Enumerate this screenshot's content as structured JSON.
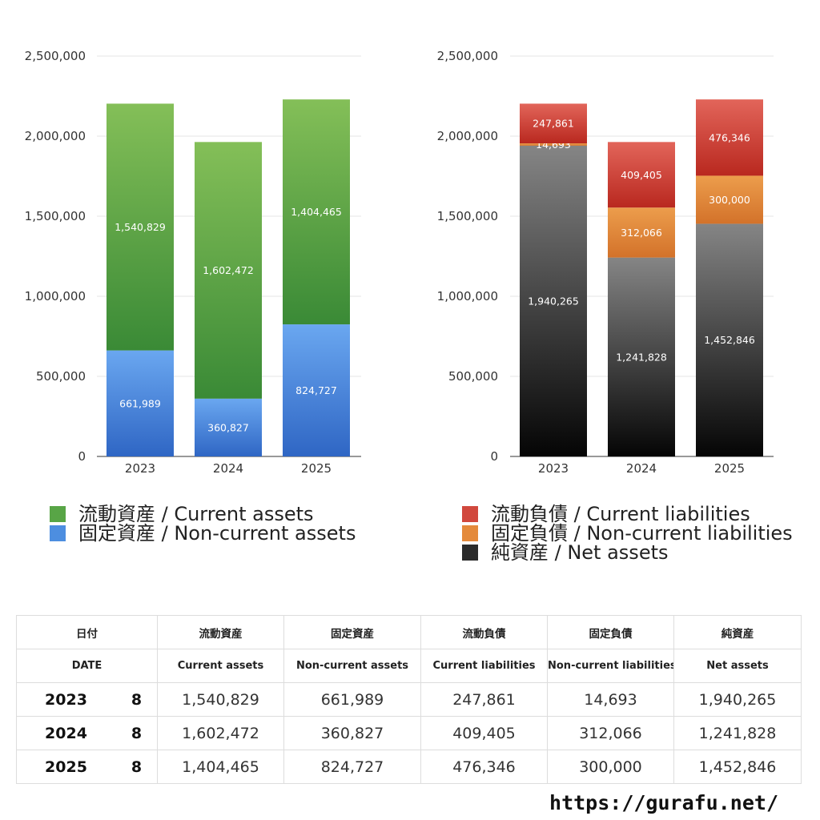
{
  "chart_data": [
    {
      "type": "bar",
      "stacked": true,
      "categories": [
        "2023",
        "2024",
        "2025"
      ],
      "series": [
        {
          "name": "固定資産 / Non-current assets",
          "values": [
            661989,
            360827,
            824727
          ],
          "color_top": "#6aa7f0",
          "color_bottom": "#2f66c4"
        },
        {
          "name": "流動資産 / Current assets",
          "values": [
            1540829,
            1602472,
            1404465
          ],
          "color_top": "#84bf58",
          "color_bottom": "#3a8a36"
        }
      ],
      "ylim": [
        0,
        2500000
      ],
      "yticks": [
        "0",
        "500,000",
        "1,000,000",
        "1,500,000",
        "2,000,000",
        "2,500,000"
      ],
      "xlabel": "",
      "ylabel": "",
      "grid": true,
      "legend_position": "bottom"
    },
    {
      "type": "bar",
      "stacked": true,
      "categories": [
        "2023",
        "2024",
        "2025"
      ],
      "series": [
        {
          "name": "純資産 / Net assets",
          "values": [
            1940265,
            1241828,
            1452846
          ],
          "color_top": "#858585",
          "color_bottom": "#050505"
        },
        {
          "name": "固定負債 / Non-current liabilities",
          "values": [
            14693,
            312066,
            300000
          ],
          "color_top": "#ec9d4c",
          "color_bottom": "#d3722a"
        },
        {
          "name": "流動負債 / Current liabilities",
          "values": [
            247861,
            409405,
            476346
          ],
          "color_top": "#e2655a",
          "color_bottom": "#b9281f"
        }
      ],
      "ylim": [
        0,
        2500000
      ],
      "yticks": [
        "0",
        "500,000",
        "1,000,000",
        "1,500,000",
        "2,000,000",
        "2,500,000"
      ],
      "xlabel": "",
      "ylabel": "",
      "grid": true,
      "legend_position": "bottom"
    }
  ],
  "legend_left": [
    {
      "label": "流動資産 / Current assets",
      "color": "#58a546"
    },
    {
      "label": "固定資産 / Non-current assets",
      "color": "#4d8ee0"
    }
  ],
  "legend_right": [
    {
      "label": "流動負債 / Current liabilities",
      "color": "#d1483d"
    },
    {
      "label": "固定負債 / Non-current liabilities",
      "color": "#e48a3c"
    },
    {
      "label": "純資産 / Net assets",
      "color": "#2b2b2b"
    }
  ],
  "table": {
    "header_jp": {
      "date": "日付",
      "current_assets": "流動資産",
      "non_current_assets": "固定資産",
      "current_liabilities": "流動負債",
      "non_current_liabilities": "固定負債",
      "net_assets": "純資産"
    },
    "header_en": {
      "date": "DATE",
      "current_assets": "Current assets",
      "non_current_assets": "Non-current assets",
      "current_liabilities": "Current liabilities",
      "non_current_liabilities": "Non-current liabilities",
      "net_assets": "Net assets"
    },
    "rows": [
      {
        "year": "2023",
        "month": "8",
        "current_assets": "1,540,829",
        "non_current_assets": "661,989",
        "current_liabilities": "247,861",
        "non_current_liabilities": "14,693",
        "net_assets": "1,940,265"
      },
      {
        "year": "2024",
        "month": "8",
        "current_assets": "1,602,472",
        "non_current_assets": "360,827",
        "current_liabilities": "409,405",
        "non_current_liabilities": "312,066",
        "net_assets": "1,241,828"
      },
      {
        "year": "2025",
        "month": "8",
        "current_assets": "1,404,465",
        "non_current_assets": "824,727",
        "current_liabilities": "476,346",
        "non_current_liabilities": "300,000",
        "net_assets": "1,452,846"
      }
    ]
  },
  "site_url": "https://gurafu.net/"
}
